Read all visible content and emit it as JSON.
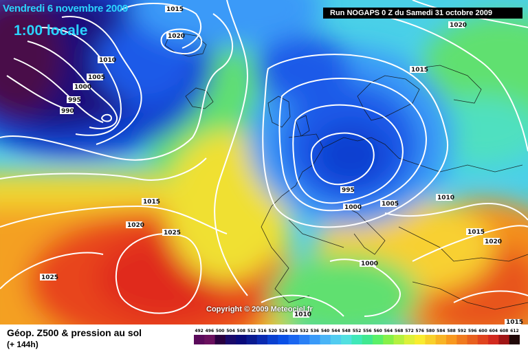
{
  "map": {
    "date": "Vendredi 6 novembre 2009",
    "local_time": "1:00 locale",
    "run_info": "Run NOGAPS 0 Z du Samedi 31 octobre 2009",
    "copyright": "Copyright © 2009 Meteociel.fr",
    "isobar_labels": [
      "1015",
      "1020",
      "1010",
      "1005",
      "1000",
      "995",
      "990",
      "1020",
      "1015",
      "995",
      "1000",
      "1005",
      "1010",
      "1015",
      "1020",
      "1025",
      "1020",
      "1015",
      "1025",
      "1000",
      "1010",
      "1015"
    ]
  },
  "legend": {
    "title": "Géop. Z500 & pression au sol",
    "subtitle": "(+ 144h)",
    "scale_labels": [
      "492",
      "496",
      "500",
      "504",
      "508",
      "512",
      "516",
      "520",
      "524",
      "528",
      "532",
      "536",
      "540",
      "544",
      "548",
      "552",
      "556",
      "560",
      "564",
      "568",
      "572",
      "576",
      "580",
      "584",
      "588",
      "592",
      "596",
      "600",
      "604",
      "608",
      "612"
    ],
    "scale_colors": [
      "#5a0a5a",
      "#6a105e",
      "#2a0040",
      "#1a0a6a",
      "#0a0a7a",
      "#0a1a90",
      "#0a2ab0",
      "#0a40d0",
      "#0a50e6",
      "#1a66f0",
      "#2a80f5",
      "#3a9af8",
      "#4ab4f6",
      "#52ccf0",
      "#52e0e0",
      "#40e8b8",
      "#40e890",
      "#5af068",
      "#86f048",
      "#b4f040",
      "#dcf03a",
      "#f8ec30",
      "#f8d02a",
      "#f8b424",
      "#f8981e",
      "#f07a1e",
      "#e8601e",
      "#e0441e",
      "#d22a1e",
      "#a01616",
      "#200808"
    ]
  }
}
